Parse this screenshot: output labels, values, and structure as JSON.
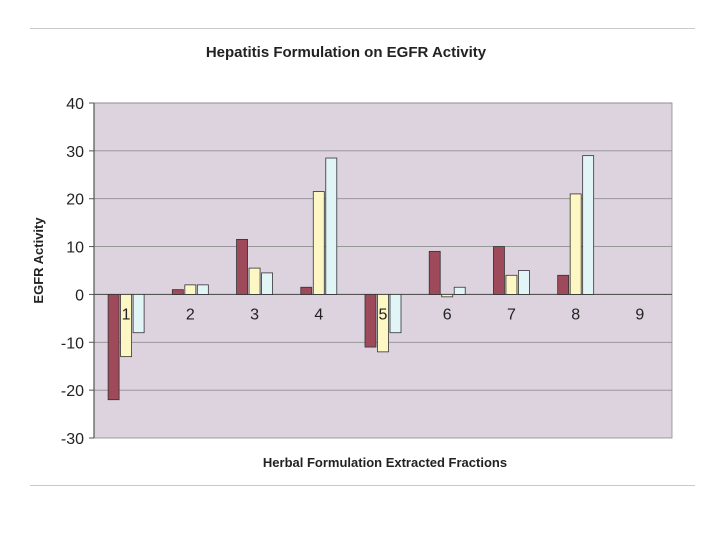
{
  "chart_data": {
    "type": "bar",
    "title": "Hepatitis Formulation on EGFR Activity",
    "xlabel": "Herbal Formulation Extracted Fractions",
    "ylabel": "EGFR Activity",
    "categories": [
      "1",
      "2",
      "3",
      "4",
      "5",
      "6",
      "7",
      "8",
      "9"
    ],
    "series": [
      {
        "values": [
          -22,
          1,
          11.5,
          1.5,
          -11,
          9,
          10,
          4,
          0
        ],
        "color": "#9e4a5a"
      },
      {
        "values": [
          -13,
          2,
          5.5,
          21.5,
          -12,
          -0.5,
          4,
          21,
          0
        ],
        "color": "#fdf7c3"
      },
      {
        "values": [
          -8,
          2,
          4.5,
          28.5,
          -8,
          1.5,
          5,
          29,
          0
        ],
        "color": "#e1f5f7"
      }
    ],
    "ylim": [
      -30,
      40
    ],
    "yticks": [
      "-30",
      "-20",
      "-10",
      "0",
      "10",
      "20",
      "30",
      "40"
    ],
    "grid": true,
    "plot_background": "#dcd3df"
  }
}
